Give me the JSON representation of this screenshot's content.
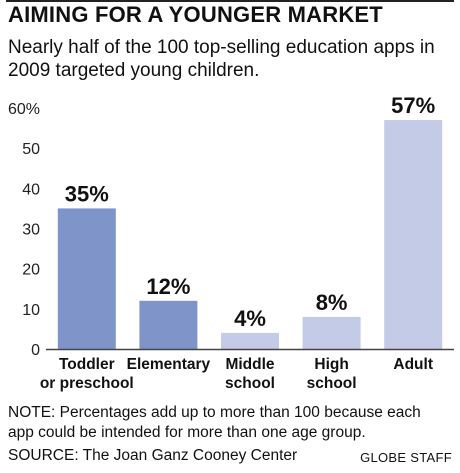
{
  "chart_data": {
    "type": "bar",
    "title": "AIMING FOR A YOUNGER MARKET",
    "subtitle": "Nearly half of the 100 top-selling education apps in 2009 targeted young children.",
    "categories": [
      [
        "Toddler",
        "or preschool"
      ],
      [
        "Elementary"
      ],
      [
        "Middle",
        "school"
      ],
      [
        "High",
        "school"
      ],
      [
        "Adult"
      ]
    ],
    "values": [
      35,
      12,
      4,
      8,
      57
    ],
    "data_labels": [
      "35%",
      "12%",
      "4%",
      "8%",
      "57%"
    ],
    "ylim": [
      0,
      60
    ],
    "yticks": [
      0,
      10,
      20,
      30,
      40,
      50,
      60
    ],
    "ytick_labels": [
      "0",
      "10",
      "20",
      "30",
      "40",
      "50",
      "60%"
    ],
    "grid": false,
    "colors": {
      "bar_dark": "#7f94c9",
      "bar_light": "#c4cbe6",
      "axis": "#444444"
    },
    "bar_color_keys": [
      "bar_dark",
      "bar_dark",
      "bar_light",
      "bar_light",
      "bar_light"
    ]
  },
  "footer": {
    "note": "NOTE: Percentages add up to more than 100 because each app could be intended for more than one age group.",
    "source": "SOURCE: The Joan Ganz Cooney Center",
    "credit": "GLOBE STAFF"
  }
}
